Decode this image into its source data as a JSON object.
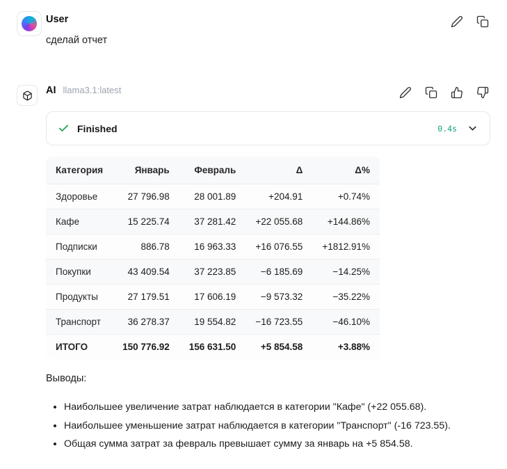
{
  "user": {
    "author": "User",
    "message": "сделай отчет"
  },
  "ai": {
    "author": "AI",
    "model": "llama3.1:latest",
    "status": {
      "label": "Finished",
      "duration": "0.4s"
    },
    "table": {
      "headers": [
        "Категория",
        "Январь",
        "Февраль",
        "Δ",
        "Δ%"
      ],
      "rows": [
        [
          "Здоровье",
          "27 796.98",
          "28 001.89",
          "+204.91",
          "+0.74%"
        ],
        [
          "Кафе",
          "15 225.74",
          "37 281.42",
          "+22 055.68",
          "+144.86%"
        ],
        [
          "Подписки",
          "886.78",
          "16 963.33",
          "+16 076.55",
          "+1812.91%"
        ],
        [
          "Покупки",
          "43 409.54",
          "37 223.85",
          "−6 185.69",
          "−14.25%"
        ],
        [
          "Продукты",
          "27 179.51",
          "17 606.19",
          "−9 573.32",
          "−35.22%"
        ],
        [
          "Транспорт",
          "36 278.37",
          "19 554.82",
          "−16 723.55",
          "−46.10%"
        ]
      ],
      "total": [
        "ИТОГО",
        "150 776.92",
        "156 631.50",
        "+5 854.58",
        "+3.88%"
      ]
    },
    "conclusions": {
      "title": "Выводы:",
      "bullets": [
        "Наибольшее увеличение затрат наблюдается в категории \"Кафе\" (+22 055.68).",
        "Наибольшее уменьшение затрат наблюдается в категории \"Транспорт\" (-16 723.55).",
        "Общая сумма затрат за февраль превышает сумму за январь на +5 854.58."
      ]
    }
  },
  "icons": {
    "edit": "pencil outline",
    "copy": "two overlapping squares",
    "thumbs_up": "thumbs up outline",
    "thumbs_down": "thumbs down outline",
    "check": "green checkmark",
    "chevron_down": "chevron down"
  },
  "colors": {
    "check_green": "#16a34a",
    "duration_teal": "#10a37f",
    "border": "#e5e7eb",
    "muted_text": "#9ca3af"
  }
}
